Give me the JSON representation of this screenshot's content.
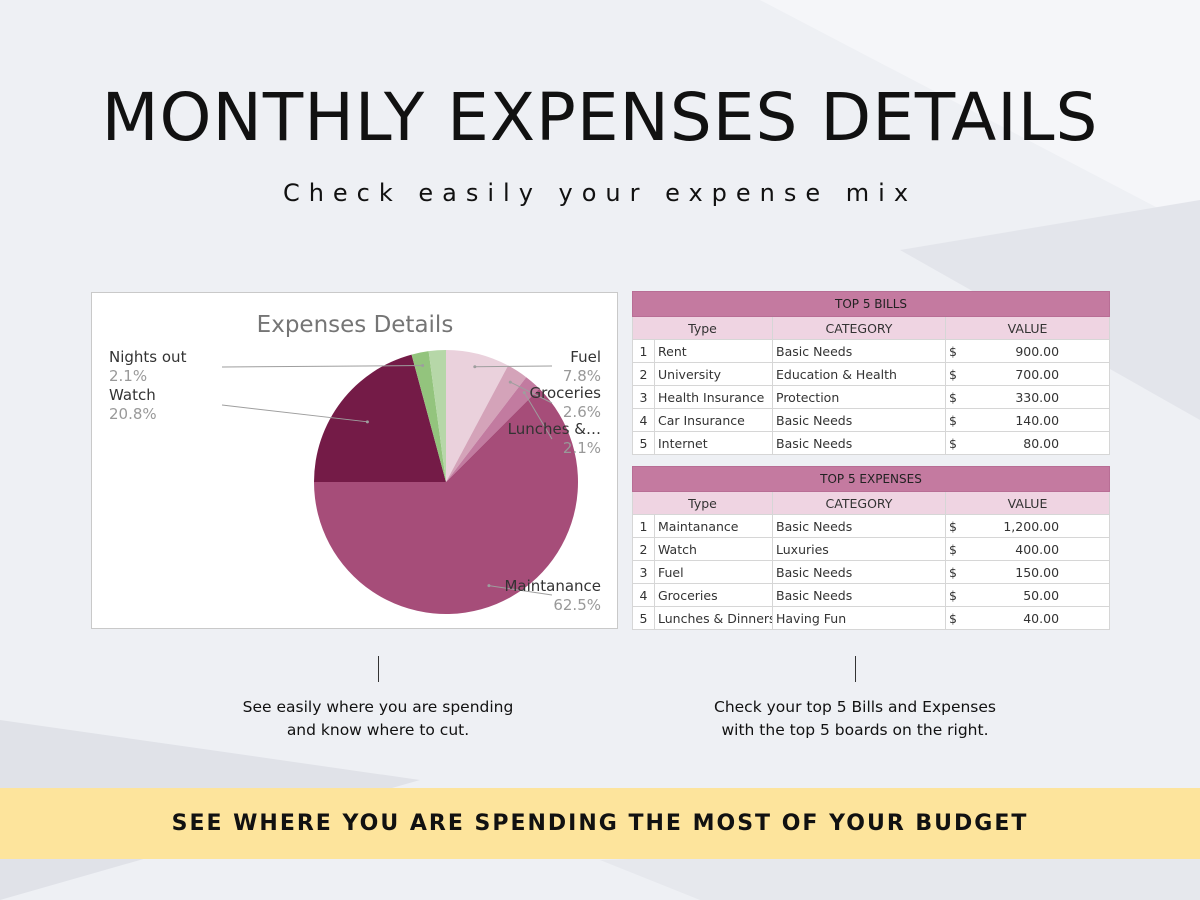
{
  "header": {
    "title": "MONTHLY EXPENSES DETAILS",
    "subtitle": "Check easily your expense mix"
  },
  "colors": {
    "banner": "#fde49c",
    "table_header": "#c47aa0",
    "table_subheader": "#efd4e2"
  },
  "chart_data": {
    "type": "pie",
    "title": "Expenses Details",
    "slices": [
      {
        "label": "Fuel",
        "value": 7.8,
        "value_label": "7.8%",
        "color": "#ead1dc"
      },
      {
        "label": "Groceries",
        "value": 2.6,
        "value_label": "2.6%",
        "color": "#d4a3b9"
      },
      {
        "label": "Lunches &…",
        "value": 2.1,
        "value_label": "2.1%",
        "color": "#c27ba0"
      },
      {
        "label": "Maintanance",
        "value": 62.5,
        "value_label": "62.5%",
        "color": "#a64d79"
      },
      {
        "label": "Watch",
        "value": 20.8,
        "value_label": "20.8%",
        "color": "#741b47"
      },
      {
        "label": "Nights out",
        "value": 2.1,
        "value_label": "2.1%",
        "color": "#93c47d"
      },
      {
        "label": "",
        "value": 2.1,
        "value_label": "",
        "color": "#b6d7a8"
      }
    ]
  },
  "bills": {
    "title": "TOP 5 BILLS",
    "headers": [
      "Type",
      "CATEGORY",
      "VALUE"
    ],
    "rows": [
      {
        "n": "1",
        "type": "Rent",
        "category": "Basic Needs",
        "cur": "$",
        "value": "900.00"
      },
      {
        "n": "2",
        "type": "University",
        "category": "Education & Health",
        "cur": "$",
        "value": "700.00"
      },
      {
        "n": "3",
        "type": "Health Insurance",
        "category": "Protection",
        "cur": "$",
        "value": "330.00"
      },
      {
        "n": "4",
        "type": "Car Insurance",
        "category": "Basic Needs",
        "cur": "$",
        "value": "140.00"
      },
      {
        "n": "5",
        "type": "Internet",
        "category": "Basic Needs",
        "cur": "$",
        "value": "80.00"
      }
    ]
  },
  "expenses": {
    "title": "TOP 5 EXPENSES",
    "headers": [
      "Type",
      "CATEGORY",
      "VALUE"
    ],
    "rows": [
      {
        "n": "1",
        "type": "Maintanance",
        "category": "Basic Needs",
        "cur": "$",
        "value": "1,200.00"
      },
      {
        "n": "2",
        "type": "Watch",
        "category": "Luxuries",
        "cur": "$",
        "value": "400.00"
      },
      {
        "n": "3",
        "type": "Fuel",
        "category": "Basic Needs",
        "cur": "$",
        "value": "150.00"
      },
      {
        "n": "4",
        "type": "Groceries",
        "category": "Basic Needs",
        "cur": "$",
        "value": "50.00"
      },
      {
        "n": "5",
        "type": "Lunches & Dinners",
        "category": "Having Fun",
        "cur": "$",
        "value": "40.00"
      }
    ]
  },
  "notes": {
    "left": "See easily where you are spending and know where to cut.",
    "right": "Check your top 5 Bills and Expenses with the top 5 boards on the right."
  },
  "banner": {
    "text": "SEE WHERE YOU ARE SPENDING THE MOST OF YOUR BUDGET"
  }
}
